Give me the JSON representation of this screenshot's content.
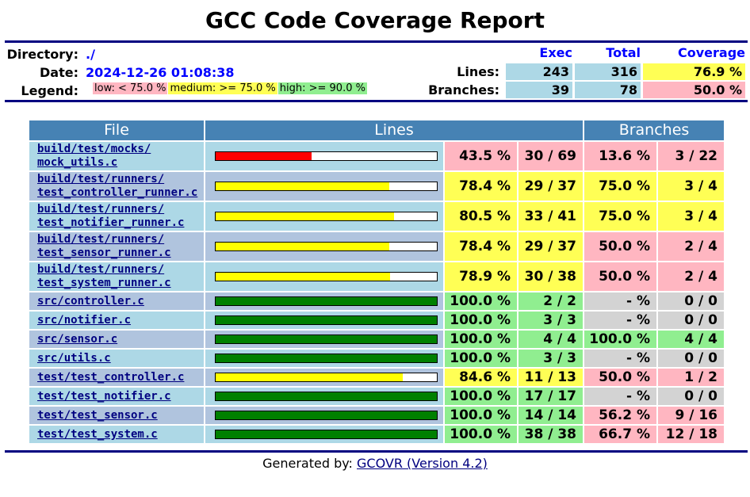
{
  "title": "GCC Code Coverage Report",
  "summary": {
    "directory_label": "Directory:",
    "directory_value": "./",
    "date_label": "Date:",
    "date_value": "2024-12-26 01:08:38",
    "legend_label": "Legend:",
    "legend_low": "low: < 75.0 %",
    "legend_medium": "medium: >= 75.0 %",
    "legend_high": "high: >= 90.0 %",
    "col_exec": "Exec",
    "col_total": "Total",
    "col_coverage": "Coverage",
    "lines_label": "Lines:",
    "lines_exec": "243",
    "lines_total": "316",
    "lines_coverage": "76.9 %",
    "branches_label": "Branches:",
    "branches_exec": "39",
    "branches_total": "78",
    "branches_coverage": "50.0 %"
  },
  "table": {
    "col_file": "File",
    "col_lines": "Lines",
    "col_branches": "Branches",
    "rows": [
      {
        "file": "build/test/mocks/\nmock_utils.c",
        "line_pct": "43.5 %",
        "lines": "30 / 69",
        "line_fraction": 0.435,
        "line_level": "low",
        "branch_pct": "13.6 %",
        "branches": "3 / 22",
        "branch_level": "low"
      },
      {
        "file": "build/test/runners/\ntest_controller_runner.c",
        "line_pct": "78.4 %",
        "lines": "29 / 37",
        "line_fraction": 0.784,
        "line_level": "medium",
        "branch_pct": "75.0 %",
        "branches": "3 / 4",
        "branch_level": "medium"
      },
      {
        "file": "build/test/runners/\ntest_notifier_runner.c",
        "line_pct": "80.5 %",
        "lines": "33 / 41",
        "line_fraction": 0.805,
        "line_level": "medium",
        "branch_pct": "75.0 %",
        "branches": "3 / 4",
        "branch_level": "medium"
      },
      {
        "file": "build/test/runners/\ntest_sensor_runner.c",
        "line_pct": "78.4 %",
        "lines": "29 / 37",
        "line_fraction": 0.784,
        "line_level": "medium",
        "branch_pct": "50.0 %",
        "branches": "2 / 4",
        "branch_level": "low"
      },
      {
        "file": "build/test/runners/\ntest_system_runner.c",
        "line_pct": "78.9 %",
        "lines": "30 / 38",
        "line_fraction": 0.789,
        "line_level": "medium",
        "branch_pct": "50.0 %",
        "branches": "2 / 4",
        "branch_level": "low"
      },
      {
        "file": "src/controller.c",
        "line_pct": "100.0 %",
        "lines": "2 / 2",
        "line_fraction": 1.0,
        "line_level": "high",
        "branch_pct": "- %",
        "branches": "0 / 0",
        "branch_level": "none"
      },
      {
        "file": "src/notifier.c",
        "line_pct": "100.0 %",
        "lines": "3 / 3",
        "line_fraction": 1.0,
        "line_level": "high",
        "branch_pct": "- %",
        "branches": "0 / 0",
        "branch_level": "none"
      },
      {
        "file": "src/sensor.c",
        "line_pct": "100.0 %",
        "lines": "4 / 4",
        "line_fraction": 1.0,
        "line_level": "high",
        "branch_pct": "100.0 %",
        "branches": "4 / 4",
        "branch_level": "high"
      },
      {
        "file": "src/utils.c",
        "line_pct": "100.0 %",
        "lines": "3 / 3",
        "line_fraction": 1.0,
        "line_level": "high",
        "branch_pct": "- %",
        "branches": "0 / 0",
        "branch_level": "none"
      },
      {
        "file": "test/test_controller.c",
        "line_pct": "84.6 %",
        "lines": "11 / 13",
        "line_fraction": 0.846,
        "line_level": "medium",
        "branch_pct": "50.0 %",
        "branches": "1 / 2",
        "branch_level": "low"
      },
      {
        "file": "test/test_notifier.c",
        "line_pct": "100.0 %",
        "lines": "17 / 17",
        "line_fraction": 1.0,
        "line_level": "high",
        "branch_pct": "- %",
        "branches": "0 / 0",
        "branch_level": "none"
      },
      {
        "file": "test/test_sensor.c",
        "line_pct": "100.0 %",
        "lines": "14 / 14",
        "line_fraction": 1.0,
        "line_level": "high",
        "branch_pct": "56.2 %",
        "branches": "9 / 16",
        "branch_level": "low"
      },
      {
        "file": "test/test_system.c",
        "line_pct": "100.0 %",
        "lines": "38 / 38",
        "line_fraction": 1.0,
        "line_level": "high",
        "branch_pct": "66.7 %",
        "branches": "12 / 18",
        "branch_level": "low"
      }
    ]
  },
  "colors": {
    "low": "#ffb6c1",
    "medium": "#ffff55",
    "high": "#90ee90",
    "none": "#d3d3d3",
    "bar_low": "#ff0000",
    "bar_medium": "#ffff00",
    "bar_high": "#008000",
    "row_light": "#add8e6",
    "row_dark": "#b0c4de",
    "header_bg": "#4682b4",
    "rule": "#000080"
  },
  "footer": {
    "prefix": "Generated by: ",
    "link": "GCOVR (Version 4.2)"
  }
}
